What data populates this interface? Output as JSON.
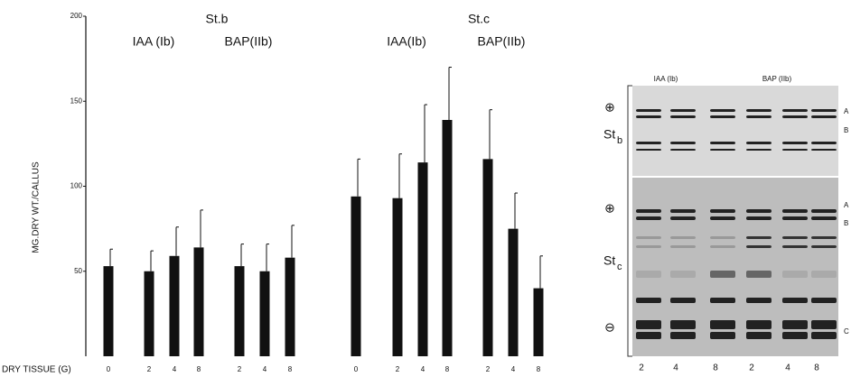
{
  "chart_data": {
    "type": "bar",
    "y_label": "MG.DRY WT./CALLUS",
    "x_label": "DRY TISSUE (G)",
    "group_labels": [
      "St.b",
      "IAA (Ib)",
      "BAP(IIb)",
      "St.c",
      "IAA(Ib)",
      "BAP(IIb)"
    ],
    "categories": [
      "0",
      "2",
      "4",
      "8",
      "2",
      "4",
      "8",
      "0",
      "2",
      "4",
      "8",
      "2",
      "4",
      "8"
    ],
    "values": [
      53,
      50,
      59,
      64,
      53,
      50,
      58,
      94,
      93,
      114,
      139,
      116,
      75,
      40
    ],
    "errors": [
      10,
      12,
      17,
      22,
      13,
      16,
      19,
      22,
      26,
      34,
      31,
      29,
      21,
      19
    ],
    "color": "#111111",
    "ylim": [
      0,
      200
    ],
    "yticks": [
      50,
      100,
      150,
      200
    ]
  },
  "gel": {
    "lane_groups": [
      "IAA (Ib)",
      "BAP (IIb)"
    ],
    "rows": [
      {
        "text": "St",
        "sub": "b"
      },
      {
        "text": "St",
        "sub": "c"
      }
    ],
    "symbols": [
      "⊕",
      "⊕",
      "⊖"
    ],
    "markers": [
      "A",
      "B",
      "A",
      "B",
      "C"
    ],
    "lanes": [
      "2",
      "4",
      "8",
      "2",
      "4",
      "8"
    ]
  }
}
